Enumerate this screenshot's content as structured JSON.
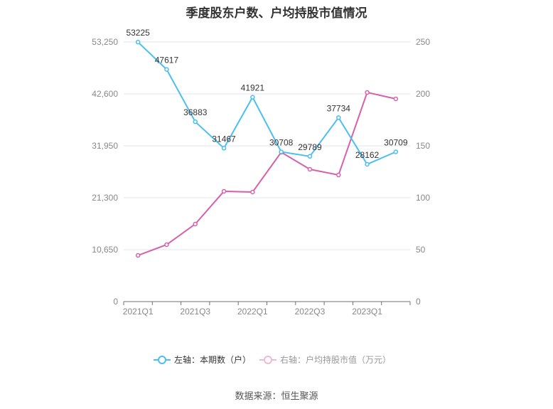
{
  "title": "季度股东户数、户均持股市值情况",
  "source": "数据来源：恒生聚源",
  "chart_data": {
    "type": "line",
    "title": "季度股东户数、户均持股市值情况",
    "categories": [
      "2021Q1",
      "2021Q2",
      "2021Q3",
      "2021Q4",
      "2022Q1",
      "2022Q2",
      "2022Q3",
      "2022Q4",
      "2023Q1",
      "2023Q2"
    ],
    "x_tick_labels": [
      "2021Q1",
      "2021Q3",
      "2022Q1",
      "2022Q3",
      "2023Q1"
    ],
    "left_axis": {
      "ylim": [
        0,
        53250
      ],
      "ticks": [
        "0",
        "10,650",
        "21,300",
        "31,950",
        "42,600",
        "53,250"
      ]
    },
    "right_axis": {
      "ylim": [
        0,
        250
      ],
      "ticks": [
        "0",
        "50",
        "100",
        "150",
        "200",
        "250"
      ]
    },
    "grid": true,
    "legend_placement": "bottom",
    "series": [
      {
        "name": "左轴：本期数（户）",
        "axis": "left",
        "color": "#4bbff0",
        "values": [
          53225,
          47617,
          36883,
          31467,
          41921,
          30708,
          29789,
          37734,
          28162,
          30709
        ],
        "labels": [
          "53225",
          "47617",
          "36883",
          "31467",
          "41921",
          "30708",
          "29789",
          "37734",
          "28162",
          "30709"
        ]
      },
      {
        "name": "右轴：户均持股市值（万元）",
        "axis": "right",
        "color": "#d661ab",
        "legend_color": "#f0b8d8",
        "values": [
          44.5,
          54.8,
          74.7,
          106.2,
          105.5,
          143.8,
          127.4,
          121.9,
          201.4,
          195.2
        ]
      }
    ]
  }
}
